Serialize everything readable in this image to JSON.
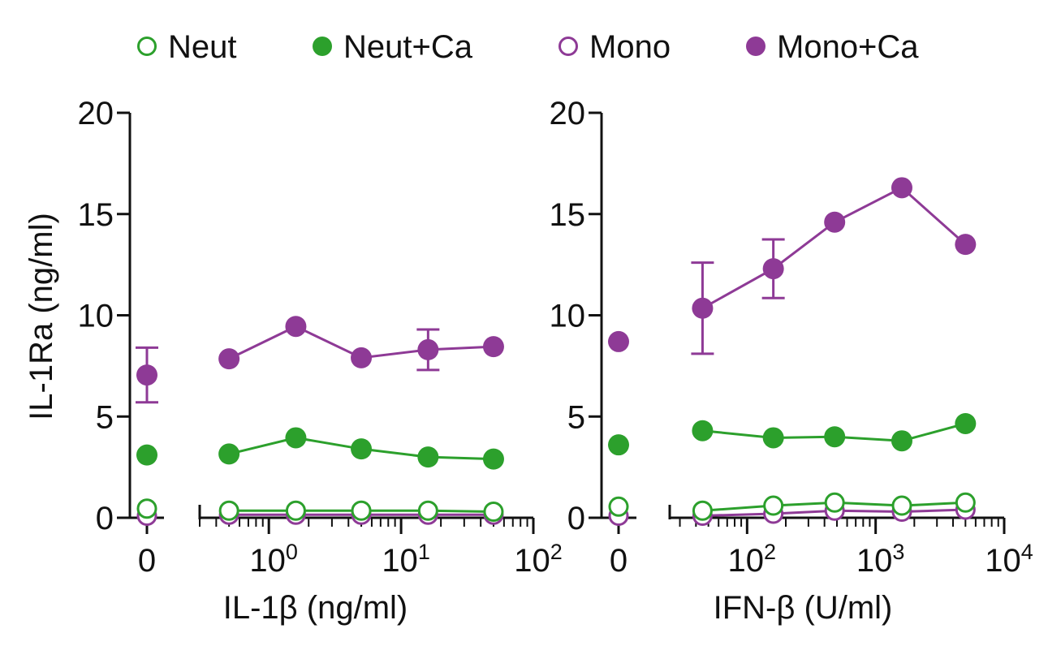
{
  "legend": [
    {
      "label": "Neut",
      "color": "#2ca02c",
      "filled": false
    },
    {
      "label": "Neut+Ca",
      "color": "#2ca02c",
      "filled": true
    },
    {
      "label": "Mono",
      "color": "#8e3a96",
      "filled": false
    },
    {
      "label": "Mono+Ca",
      "color": "#8e3a96",
      "filled": true
    }
  ],
  "colors": {
    "neut": "#2ca02c",
    "mono": "#8e3a96",
    "axis": "#111111"
  },
  "chart_data": [
    {
      "type": "line",
      "ylabel": "IL-1Ra (ng/ml)",
      "xlabel": "IL-1β (ng/ml)",
      "ylim": [
        0,
        20
      ],
      "yticks": [
        "0",
        "5",
        "10",
        "15",
        "20"
      ],
      "xscale": "log",
      "xlim": [
        0.3,
        100
      ],
      "xticks": [
        {
          "base": "10",
          "exp": "0"
        },
        {
          "base": "10",
          "exp": "1"
        },
        {
          "base": "10",
          "exp": "2"
        }
      ],
      "zero_label": "0",
      "x": [
        0.5,
        1.6,
        5,
        16,
        50
      ],
      "series": [
        {
          "name": "Neut",
          "zero": 0.45,
          "values": [
            0.35,
            0.35,
            0.35,
            0.35,
            0.3
          ],
          "err": [
            null,
            null,
            null,
            null,
            null
          ]
        },
        {
          "name": "Neut+Ca",
          "zero": 3.1,
          "values": [
            3.15,
            3.95,
            3.4,
            3.0,
            2.9
          ],
          "err": [
            null,
            null,
            null,
            null,
            null
          ]
        },
        {
          "name": "Mono",
          "zero": 0.1,
          "values": [
            0.15,
            0.15,
            0.15,
            0.15,
            0.15
          ],
          "err": [
            null,
            null,
            null,
            null,
            null
          ]
        },
        {
          "name": "Mono+Ca",
          "zero": 7.05,
          "zero_err": 1.35,
          "values": [
            7.85,
            9.45,
            7.9,
            8.3,
            8.45
          ],
          "err": [
            null,
            null,
            null,
            1.0,
            null
          ]
        }
      ]
    },
    {
      "type": "line",
      "ylabel": "",
      "xlabel": "IFN-β (U/ml)",
      "ylim": [
        0,
        20
      ],
      "yticks": [
        "0",
        "5",
        "10",
        "15",
        "20"
      ],
      "xscale": "log",
      "xlim": [
        25,
        10000
      ],
      "xticks": [
        {
          "base": "10",
          "exp": "2"
        },
        {
          "base": "10",
          "exp": "3"
        },
        {
          "base": "10",
          "exp": "4"
        }
      ],
      "zero_label": "0",
      "x": [
        45,
        160,
        480,
        1600,
        5000
      ],
      "series": [
        {
          "name": "Neut",
          "zero": 0.55,
          "values": [
            0.35,
            0.6,
            0.75,
            0.6,
            0.75
          ],
          "err": [
            null,
            null,
            null,
            null,
            null
          ]
        },
        {
          "name": "Neut+Ca",
          "zero": 3.6,
          "values": [
            4.3,
            3.95,
            4.0,
            3.8,
            4.65
          ],
          "err": [
            null,
            null,
            null,
            null,
            null
          ]
        },
        {
          "name": "Mono",
          "zero": 0.1,
          "values": [
            0.1,
            0.2,
            0.35,
            0.3,
            0.4
          ],
          "err": [
            null,
            null,
            null,
            null,
            null
          ]
        },
        {
          "name": "Mono+Ca",
          "zero": 8.7,
          "values": [
            10.35,
            12.3,
            14.6,
            16.3,
            13.5
          ],
          "err": [
            2.25,
            1.45,
            null,
            null,
            null
          ]
        }
      ]
    }
  ]
}
